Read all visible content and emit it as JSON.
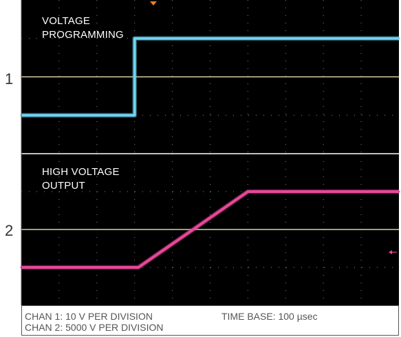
{
  "chart_data": [
    {
      "type": "line",
      "channel_number": "1",
      "trace_label_lines": [
        "VOLTAGE",
        "PROGRAMMING"
      ],
      "series": [
        {
          "x": [
            0,
            3.0,
            3.0,
            10
          ],
          "y": [
            -1.0,
            -1.0,
            1.0,
            1.0
          ]
        }
      ],
      "xlim": [
        0,
        10
      ],
      "ylim": [
        -2,
        2
      ],
      "grid": true,
      "trace_color": "#6fd3f2"
    },
    {
      "type": "line",
      "channel_number": "2",
      "trace_label_lines": [
        "HIGH VOLTAGE",
        "OUTPUT"
      ],
      "series": [
        {
          "x": [
            0,
            3.1,
            6.0,
            10
          ],
          "y": [
            -1.0,
            -1.0,
            1.0,
            1.0
          ]
        }
      ],
      "xlim": [
        0,
        10
      ],
      "ylim": [
        -2,
        2
      ],
      "grid": true,
      "trace_color": "#e8489a"
    }
  ],
  "footer": {
    "chan1": "CHAN 1: 10 V PER DIVISION",
    "chan2": "CHAN 2: 5000 V PER DIVISION",
    "timebase": "TIME BASE: 100 µsec"
  },
  "colors": {
    "screen": "#000000",
    "grid_dots": "#8a8a8a",
    "reference_line": "#d9d2a0",
    "trigger_marker": "#ff7a1a",
    "level_marker": "#e8489a"
  }
}
